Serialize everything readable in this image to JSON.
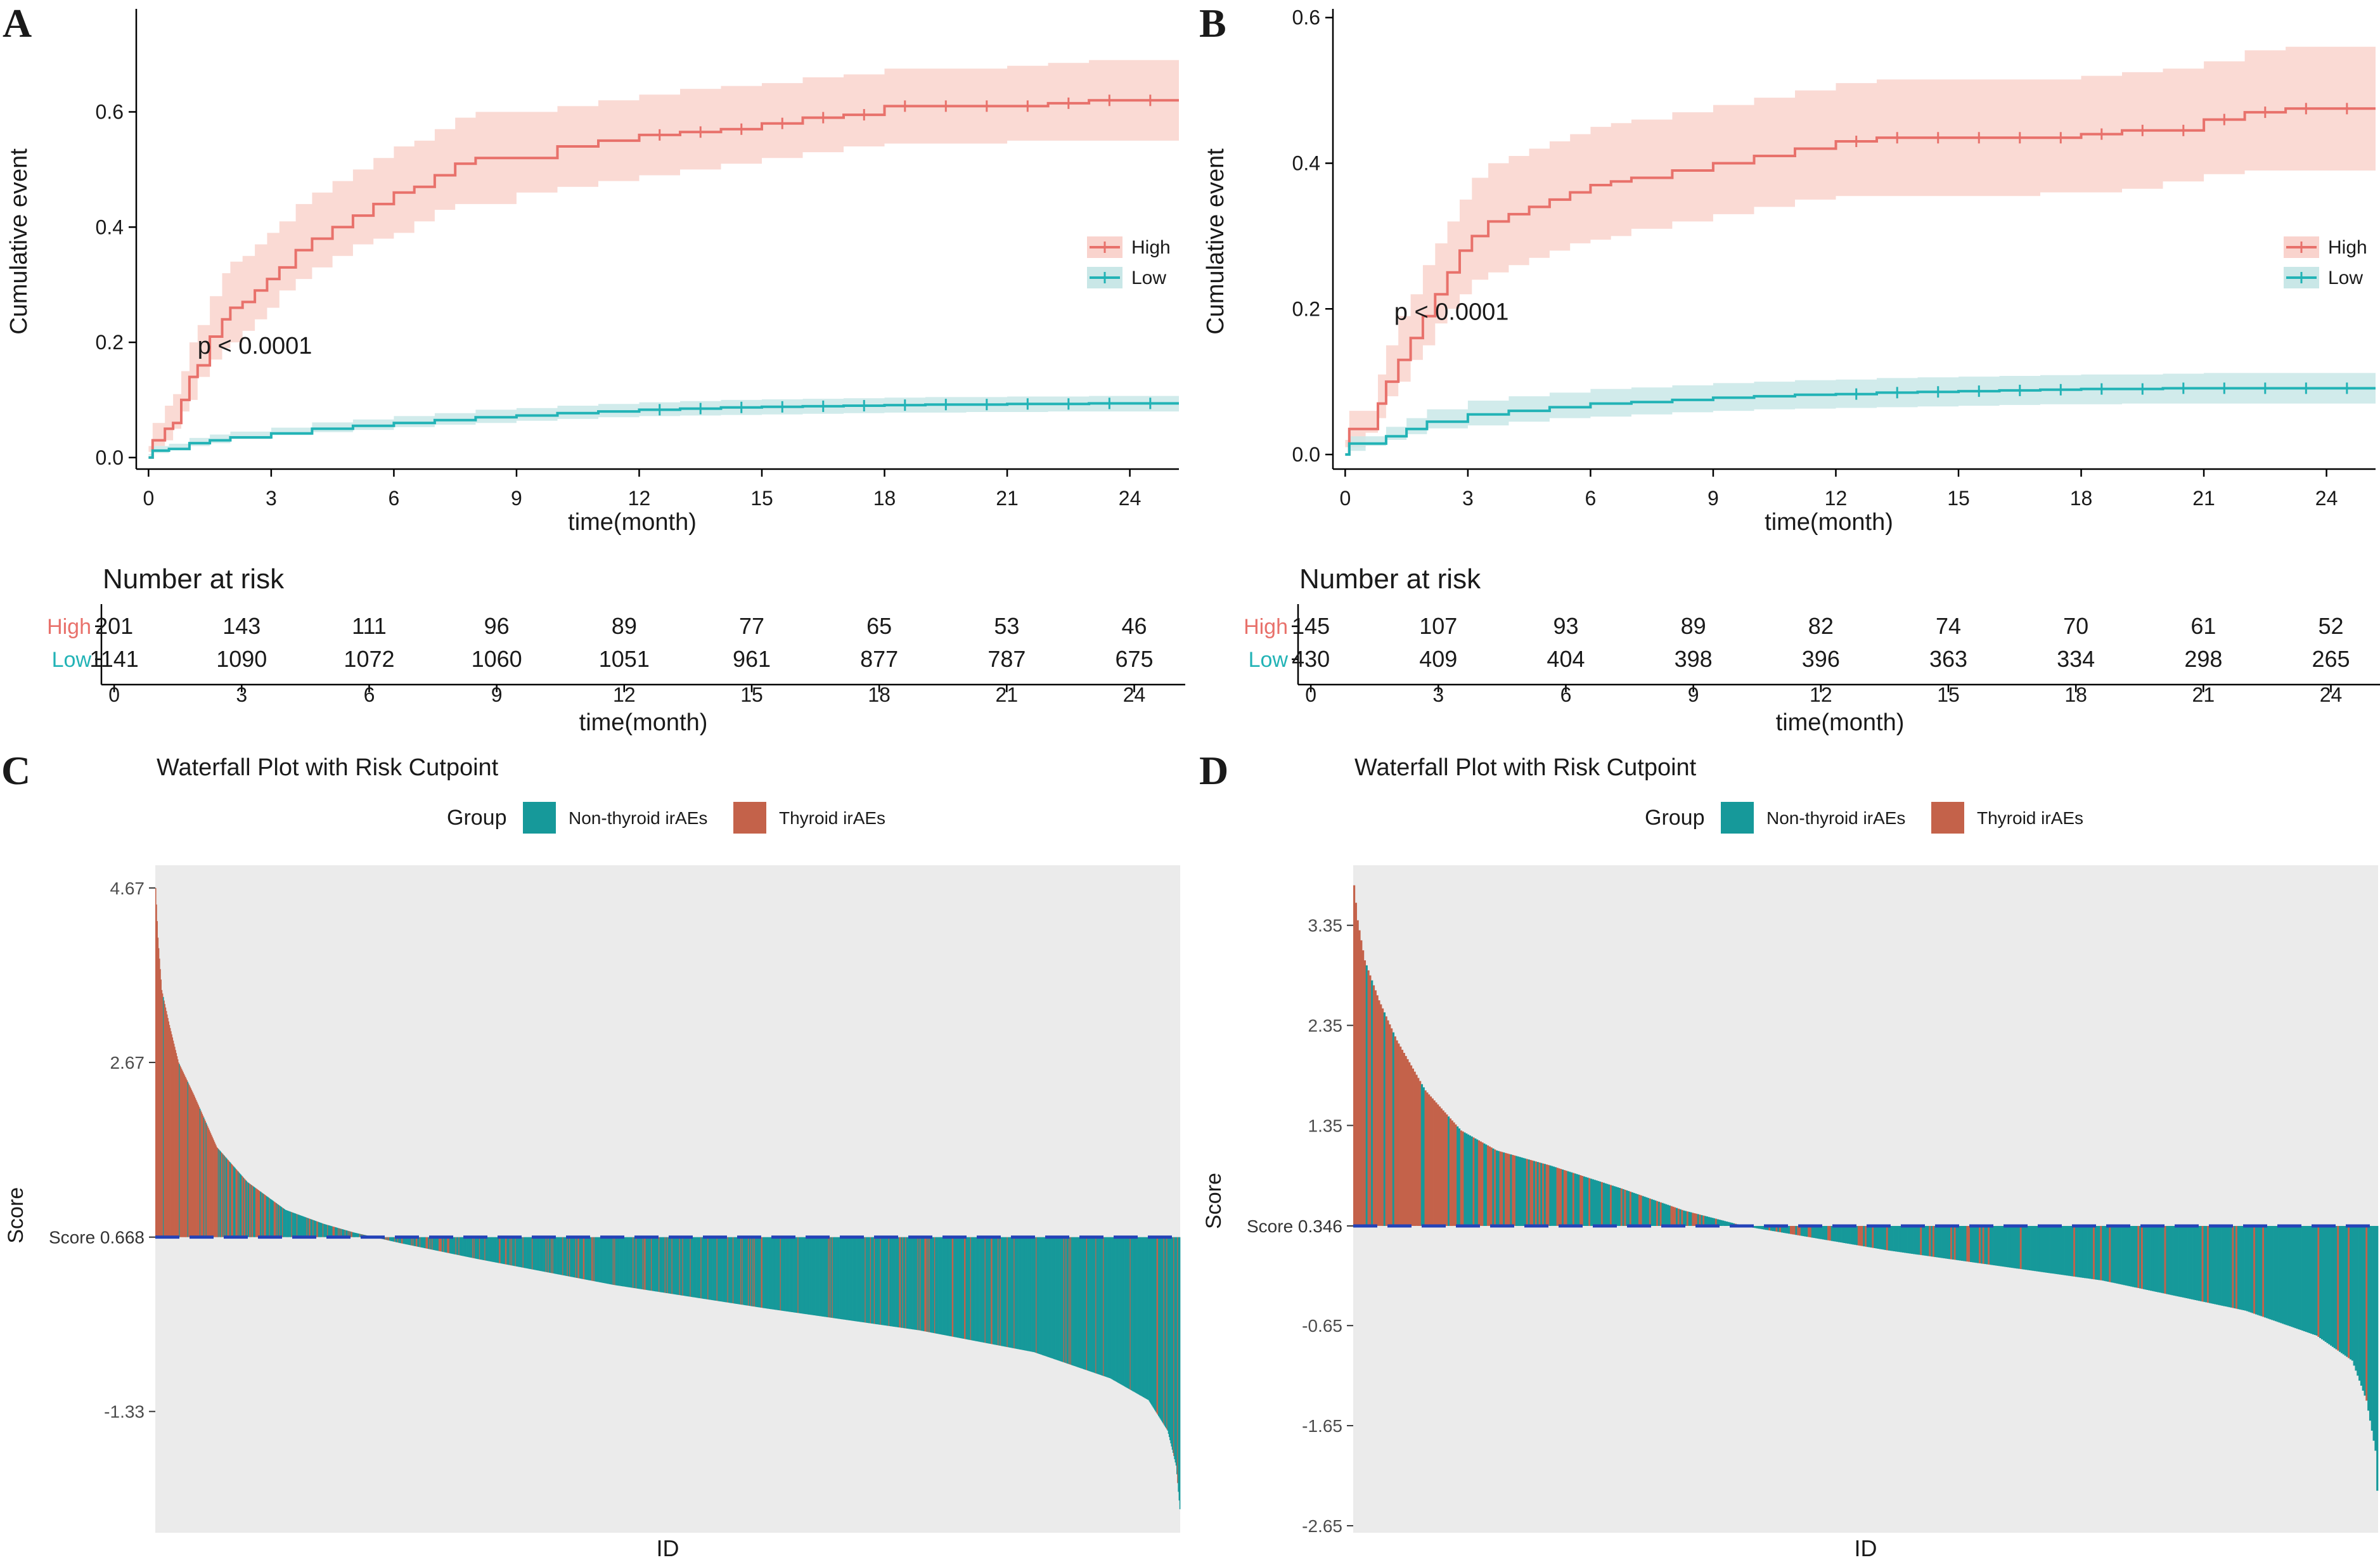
{
  "colors": {
    "high": "#e8716b",
    "high_band": "#f9d3cd",
    "low": "#22b3b6",
    "low_band": "#c9e7e7",
    "non_thyroid": "#16999a",
    "thyroid": "#c4624a",
    "cutpoint": "#2443b8",
    "panel_bg": "#ebebeb",
    "text": "#1a1a1a",
    "tick_text": "#4d4d4d"
  },
  "chart_data": [
    {
      "id": "A",
      "type": "line",
      "letter": "A",
      "ylabel": "Cumulative event",
      "xlabel": "time(month)",
      "xlim": [
        -0.3,
        25.2
      ],
      "ylim": [
        -0.02,
        0.77
      ],
      "xticks": [
        0,
        3,
        6,
        9,
        12,
        15,
        18,
        21,
        24
      ],
      "yticks": [
        0.0,
        0.2,
        0.4,
        0.6
      ],
      "ytick_labels": [
        "0.0",
        "0.2",
        "0.4",
        "0.6"
      ],
      "pvalue": "p < 0.0001",
      "pvalue_pos": [
        1.2,
        0.18
      ],
      "legend": [
        "High",
        "Low"
      ],
      "series": [
        {
          "name": "High",
          "x": [
            0,
            0.1,
            0.4,
            0.6,
            0.8,
            1.0,
            1.2,
            1.5,
            1.8,
            2.0,
            2.3,
            2.6,
            2.9,
            3.2,
            3.6,
            4.0,
            4.5,
            5.0,
            5.5,
            6.0,
            6.5,
            7.0,
            7.5,
            8.0,
            9.0,
            10.0,
            11.0,
            12.0,
            13.0,
            14.0,
            15.0,
            16.0,
            17.0,
            18.0,
            19.0,
            20.0,
            21.0,
            22.0,
            23.0,
            24.0,
            25.2
          ],
          "y": [
            0.0,
            0.03,
            0.05,
            0.06,
            0.1,
            0.14,
            0.16,
            0.21,
            0.24,
            0.26,
            0.27,
            0.29,
            0.31,
            0.33,
            0.36,
            0.38,
            0.4,
            0.42,
            0.44,
            0.46,
            0.47,
            0.49,
            0.51,
            0.52,
            0.52,
            0.54,
            0.55,
            0.56,
            0.565,
            0.57,
            0.58,
            0.59,
            0.595,
            0.61,
            0.61,
            0.61,
            0.61,
            0.615,
            0.62,
            0.62,
            0.62
          ],
          "lo": [
            0.0,
            0.01,
            0.02,
            0.03,
            0.05,
            0.08,
            0.1,
            0.14,
            0.17,
            0.19,
            0.2,
            0.22,
            0.24,
            0.26,
            0.29,
            0.31,
            0.33,
            0.35,
            0.37,
            0.38,
            0.39,
            0.41,
            0.43,
            0.44,
            0.44,
            0.46,
            0.47,
            0.48,
            0.49,
            0.5,
            0.51,
            0.52,
            0.53,
            0.54,
            0.545,
            0.545,
            0.545,
            0.55,
            0.55,
            0.55,
            0.55
          ],
          "hi": [
            0.02,
            0.06,
            0.09,
            0.11,
            0.15,
            0.2,
            0.23,
            0.28,
            0.32,
            0.34,
            0.35,
            0.37,
            0.39,
            0.41,
            0.44,
            0.46,
            0.48,
            0.5,
            0.52,
            0.54,
            0.55,
            0.57,
            0.59,
            0.6,
            0.6,
            0.61,
            0.62,
            0.63,
            0.64,
            0.645,
            0.65,
            0.66,
            0.665,
            0.675,
            0.675,
            0.675,
            0.68,
            0.685,
            0.69,
            0.69,
            0.69
          ]
        },
        {
          "name": "Low",
          "x": [
            0,
            0.1,
            0.5,
            1.0,
            1.5,
            2.0,
            3.0,
            4.0,
            5.0,
            6.0,
            7.0,
            8.0,
            9.0,
            10.0,
            11.0,
            12.0,
            13.0,
            14.0,
            15.0,
            16.0,
            17.0,
            18.0,
            19.0,
            20.0,
            21.0,
            22.0,
            23.0,
            24.0,
            25.2
          ],
          "y": [
            0.0,
            0.012,
            0.015,
            0.025,
            0.03,
            0.035,
            0.042,
            0.05,
            0.055,
            0.06,
            0.065,
            0.07,
            0.073,
            0.077,
            0.08,
            0.083,
            0.085,
            0.087,
            0.088,
            0.089,
            0.09,
            0.091,
            0.092,
            0.092,
            0.093,
            0.093,
            0.094,
            0.094,
            0.094
          ],
          "lo": [
            0.0,
            0.006,
            0.008,
            0.016,
            0.02,
            0.025,
            0.032,
            0.039,
            0.044,
            0.048,
            0.053,
            0.057,
            0.06,
            0.064,
            0.067,
            0.07,
            0.072,
            0.073,
            0.074,
            0.075,
            0.076,
            0.077,
            0.078,
            0.078,
            0.079,
            0.079,
            0.08,
            0.08,
            0.08
          ],
          "hi": [
            0.004,
            0.02,
            0.024,
            0.034,
            0.04,
            0.045,
            0.052,
            0.061,
            0.066,
            0.072,
            0.077,
            0.083,
            0.086,
            0.09,
            0.093,
            0.096,
            0.098,
            0.1,
            0.101,
            0.102,
            0.103,
            0.104,
            0.105,
            0.105,
            0.106,
            0.106,
            0.107,
            0.107,
            0.107
          ]
        }
      ],
      "risk_table": {
        "title": "Number at risk",
        "xlabel": "time(month)",
        "rows": [
          {
            "name": "High",
            "values": [
              "201",
              "143",
              "111",
              "96",
              "89",
              "77",
              "65",
              "53",
              "46"
            ]
          },
          {
            "name": "Low",
            "values": [
              "1141",
              "1090",
              "1072",
              "1060",
              "1051",
              "961",
              "877",
              "787",
              "675"
            ]
          }
        ]
      }
    },
    {
      "id": "B",
      "type": "line",
      "letter": "B",
      "ylabel": "Cumulative event",
      "xlabel": "time(month)",
      "xlim": [
        -0.3,
        25.2
      ],
      "ylim": [
        -0.02,
        0.605
      ],
      "xticks": [
        0,
        3,
        6,
        9,
        12,
        15,
        18,
        21,
        24
      ],
      "yticks": [
        0.0,
        0.2,
        0.4,
        0.6
      ],
      "ytick_labels": [
        "0.0",
        "0.2",
        "0.4",
        "0.6"
      ],
      "pvalue": "p < 0.0001",
      "pvalue_pos": [
        1.2,
        0.185
      ],
      "legend": [
        "High",
        "Low"
      ],
      "series": [
        {
          "name": "High",
          "x": [
            0,
            0.1,
            0.5,
            0.8,
            1.0,
            1.3,
            1.6,
            1.9,
            2.2,
            2.5,
            2.8,
            3.1,
            3.5,
            4.0,
            4.5,
            5.0,
            5.5,
            6.0,
            6.5,
            7.0,
            8.0,
            9.0,
            10.0,
            11.0,
            12.0,
            13.0,
            14.0,
            15.0,
            16.0,
            17.0,
            18.0,
            19.0,
            20.0,
            21.0,
            22.0,
            23.0,
            24.0,
            25.2
          ],
          "y": [
            0.0,
            0.035,
            0.035,
            0.07,
            0.1,
            0.13,
            0.16,
            0.19,
            0.22,
            0.25,
            0.28,
            0.3,
            0.32,
            0.33,
            0.34,
            0.35,
            0.36,
            0.37,
            0.375,
            0.38,
            0.39,
            0.4,
            0.41,
            0.42,
            0.43,
            0.435,
            0.435,
            0.435,
            0.435,
            0.435,
            0.44,
            0.445,
            0.445,
            0.46,
            0.47,
            0.475,
            0.475,
            0.475
          ],
          "lo": [
            0.0,
            0.01,
            0.01,
            0.03,
            0.05,
            0.08,
            0.1,
            0.13,
            0.15,
            0.18,
            0.2,
            0.22,
            0.24,
            0.25,
            0.26,
            0.27,
            0.28,
            0.29,
            0.295,
            0.3,
            0.31,
            0.32,
            0.33,
            0.34,
            0.35,
            0.355,
            0.355,
            0.355,
            0.355,
            0.355,
            0.36,
            0.36,
            0.365,
            0.375,
            0.385,
            0.39,
            0.39,
            0.39
          ],
          "hi": [
            0.02,
            0.06,
            0.06,
            0.11,
            0.15,
            0.19,
            0.22,
            0.26,
            0.29,
            0.32,
            0.35,
            0.38,
            0.4,
            0.41,
            0.42,
            0.43,
            0.44,
            0.45,
            0.455,
            0.46,
            0.47,
            0.48,
            0.49,
            0.5,
            0.51,
            0.515,
            0.515,
            0.515,
            0.515,
            0.515,
            0.52,
            0.525,
            0.53,
            0.54,
            0.555,
            0.56,
            0.56,
            0.56
          ]
        },
        {
          "name": "Low",
          "x": [
            0,
            0.1,
            0.5,
            1.0,
            1.5,
            2.0,
            3.0,
            4.0,
            5.0,
            6.0,
            7.0,
            8.0,
            9.0,
            10.0,
            11.0,
            12.0,
            13.0,
            14.0,
            15.0,
            16.0,
            17.0,
            18.0,
            19.0,
            20.0,
            21.0,
            22.0,
            23.0,
            24.0,
            25.2
          ],
          "y": [
            0.0,
            0.015,
            0.015,
            0.025,
            0.035,
            0.045,
            0.055,
            0.06,
            0.065,
            0.07,
            0.072,
            0.075,
            0.078,
            0.08,
            0.082,
            0.083,
            0.085,
            0.086,
            0.087,
            0.088,
            0.089,
            0.09,
            0.09,
            0.091,
            0.091,
            0.091,
            0.091,
            0.091,
            0.091
          ],
          "lo": [
            0.0,
            0.005,
            0.005,
            0.012,
            0.02,
            0.028,
            0.036,
            0.04,
            0.045,
            0.05,
            0.052,
            0.055,
            0.058,
            0.06,
            0.062,
            0.063,
            0.064,
            0.065,
            0.066,
            0.067,
            0.068,
            0.069,
            0.069,
            0.07,
            0.07,
            0.07,
            0.07,
            0.07,
            0.07
          ],
          "hi": [
            0.005,
            0.025,
            0.025,
            0.038,
            0.05,
            0.062,
            0.074,
            0.08,
            0.085,
            0.09,
            0.092,
            0.095,
            0.098,
            0.1,
            0.102,
            0.103,
            0.105,
            0.106,
            0.107,
            0.108,
            0.109,
            0.11,
            0.11,
            0.111,
            0.112,
            0.112,
            0.112,
            0.112,
            0.112
          ]
        }
      ],
      "risk_table": {
        "title": "Number at risk",
        "xlabel": "time(month)",
        "rows": [
          {
            "name": "High",
            "values": [
              "145",
              "107",
              "93",
              "89",
              "82",
              "74",
              "70",
              "61",
              "52"
            ]
          },
          {
            "name": "Low",
            "values": [
              "430",
              "409",
              "404",
              "398",
              "396",
              "363",
              "334",
              "298",
              "265"
            ]
          }
        ]
      }
    },
    {
      "id": "C",
      "type": "bar",
      "letter": "C",
      "title": "Waterfall Plot with Risk Cutpoint",
      "legend_title": "Group",
      "legend": [
        "Non-thyroid irAEs",
        "Thyroid irAEs"
      ],
      "xlabel": "ID",
      "ylabel": "Score",
      "ylim": [
        -2.72,
        4.93
      ],
      "yticks": [
        4.67,
        2.67,
        -1.33
      ],
      "ytick_labels": [
        "4.67",
        "2.67",
        "-1.33"
      ],
      "cutpoint": 0.668,
      "cutpoint_label": "Score 0.668",
      "n": 1342,
      "profile": [
        [
          0,
          4.67
        ],
        [
          3,
          4.1
        ],
        [
          8,
          3.5
        ],
        [
          18,
          3.1
        ],
        [
          30,
          2.67
        ],
        [
          50,
          2.3
        ],
        [
          80,
          1.7
        ],
        [
          120,
          1.3
        ],
        [
          170,
          0.98
        ],
        [
          220,
          0.82
        ],
        [
          260,
          0.72
        ],
        [
          320,
          0.6
        ],
        [
          420,
          0.42
        ],
        [
          600,
          0.12
        ],
        [
          800,
          -0.15
        ],
        [
          1000,
          -0.4
        ],
        [
          1150,
          -0.65
        ],
        [
          1250,
          -0.95
        ],
        [
          1300,
          -1.2
        ],
        [
          1325,
          -1.55
        ],
        [
          1336,
          -1.95
        ],
        [
          1341,
          -2.45
        ]
      ],
      "thyroid_share": [
        [
          0,
          0.96
        ],
        [
          60,
          0.85
        ],
        [
          130,
          0.5
        ],
        [
          230,
          0.3
        ],
        [
          450,
          0.15
        ],
        [
          900,
          0.12
        ],
        [
          1341,
          0.1
        ]
      ]
    },
    {
      "id": "D",
      "type": "bar",
      "letter": "D",
      "title": "Waterfall Plot with Risk Cutpoint",
      "legend_title": "Group",
      "legend": [
        "Non-thyroid irAEs",
        "Thyroid irAEs"
      ],
      "xlabel": "ID",
      "ylabel": "Score",
      "ylim": [
        -2.72,
        3.95
      ],
      "yticks": [
        3.35,
        2.35,
        1.35,
        -0.65,
        -1.65,
        -2.65
      ],
      "ytick_labels": [
        "3.35",
        "2.35",
        "1.35",
        "-0.65",
        "-1.65",
        "-2.65"
      ],
      "cutpoint": 0.346,
      "cutpoint_label": "Score 0.346",
      "n": 575,
      "profile": [
        [
          0,
          3.75
        ],
        [
          2,
          3.4
        ],
        [
          6,
          3.0
        ],
        [
          14,
          2.6
        ],
        [
          24,
          2.2
        ],
        [
          40,
          1.7
        ],
        [
          60,
          1.3
        ],
        [
          80,
          1.1
        ],
        [
          110,
          0.95
        ],
        [
          150,
          0.72
        ],
        [
          185,
          0.5
        ],
        [
          220,
          0.34
        ],
        [
          300,
          0.1
        ],
        [
          420,
          -0.2
        ],
        [
          500,
          -0.5
        ],
        [
          540,
          -0.75
        ],
        [
          560,
          -1.0
        ],
        [
          568,
          -1.4
        ],
        [
          573,
          -1.9
        ],
        [
          574,
          -2.3
        ]
      ],
      "thyroid_share": [
        [
          0,
          0.95
        ],
        [
          30,
          0.85
        ],
        [
          70,
          0.55
        ],
        [
          150,
          0.3
        ],
        [
          300,
          0.15
        ],
        [
          574,
          0.12
        ]
      ]
    }
  ]
}
